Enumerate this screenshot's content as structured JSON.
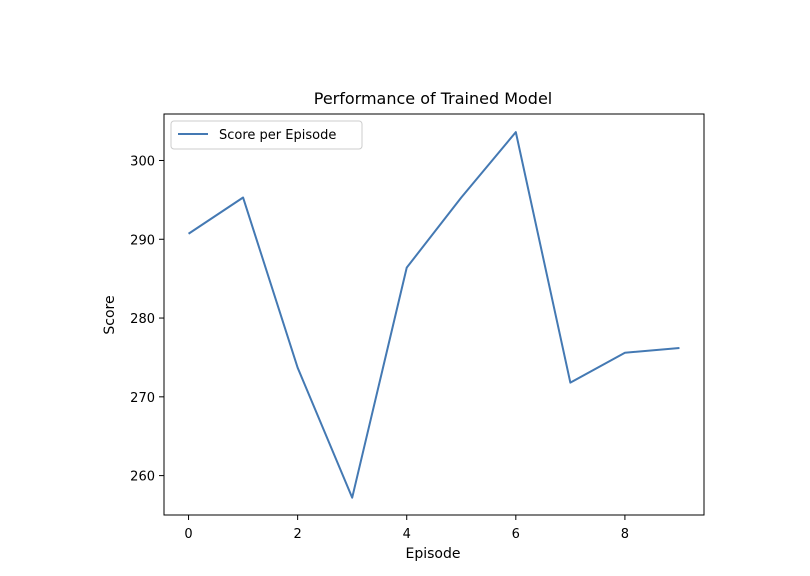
{
  "chart_data": {
    "type": "line",
    "title": "Performance of Trained Model",
    "xlabel": "Episode",
    "ylabel": "Score",
    "x": [
      0,
      1,
      2,
      3,
      4,
      5,
      6,
      7,
      8,
      9
    ],
    "series": [
      {
        "name": "Score per Episode",
        "values": [
          290.7,
          295.3,
          273.7,
          257.2,
          286.4,
          295.3,
          303.6,
          271.8,
          275.6,
          276.2
        ],
        "color": "#4479b3"
      }
    ],
    "xlim": [
      -0.45,
      9.45
    ],
    "ylim": [
      255.0,
      305.9
    ],
    "xticks": [
      0,
      2,
      4,
      6,
      8
    ],
    "yticks": [
      260,
      270,
      280,
      290,
      300
    ],
    "xtick_labels": [
      "0",
      "2",
      "4",
      "6",
      "8"
    ],
    "ytick_labels": [
      "260",
      "270",
      "280",
      "290",
      "300"
    ],
    "grid": false,
    "legend_position": "upper-left"
  }
}
